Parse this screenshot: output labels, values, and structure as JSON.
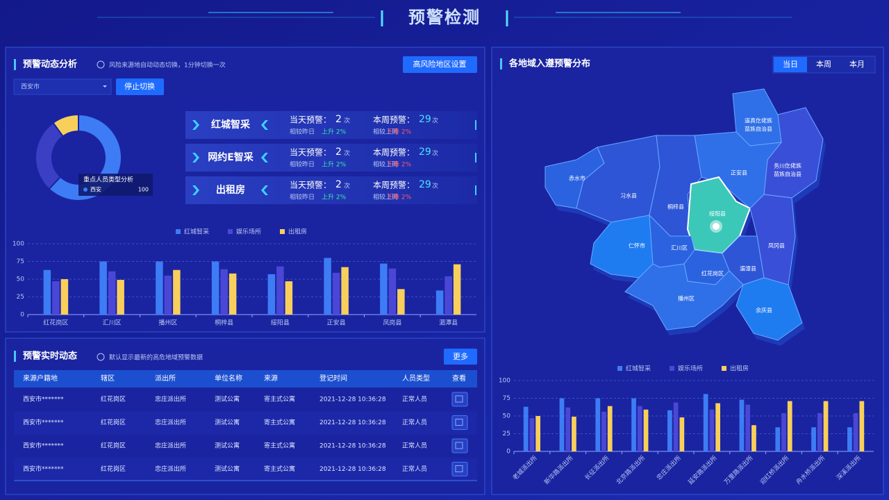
{
  "header": {
    "title": "预警检测"
  },
  "left_top": {
    "title": "预警动态分析",
    "info": "风险来源地自动动态切换，1分钟切换一次",
    "button": "高风险地区设置",
    "select": "西安市",
    "stop_button": "停止切换",
    "cards": [
      {
        "name": "红城智采",
        "today_label": "当天预警：",
        "today_value": 2,
        "today_unit": "次",
        "day_compare": "相较昨日",
        "day_trend": "上升 2%",
        "week_label": "本周预警：",
        "week_value": 29,
        "week_unit": "次",
        "week_compare": "相较上周",
        "week_trend": "下降 2%"
      },
      {
        "name": "网约E智采",
        "today_label": "当天预警：",
        "today_value": 2,
        "today_unit": "次",
        "day_compare": "相较昨日",
        "day_trend": "上升 2%",
        "week_label": "本周预警：",
        "week_value": 29,
        "week_unit": "次",
        "week_compare": "相较上周",
        "week_trend": "下降 2%"
      },
      {
        "name": "出租房",
        "today_label": "当天预警：",
        "today_value": 2,
        "today_unit": "次",
        "day_compare": "相较昨日",
        "day_trend": "上升 2%",
        "week_label": "本周预警：",
        "week_value": 29,
        "week_unit": "次",
        "week_compare": "相较上周",
        "week_trend": "下降 2%"
      }
    ]
  },
  "chart_data": [
    {
      "type": "pie",
      "categories": [
        null,
        null,
        null
      ],
      "values": [
        62,
        28,
        10
      ],
      "colors": [
        "#3d7cf5",
        "#3a3fc4",
        "#f9cf5b"
      ],
      "tooltip": {
        "title": "重点人员类型分析",
        "label": "西安",
        "value": 100
      }
    },
    {
      "type": "bar",
      "categories": [
        "红花岗区",
        "汇川区",
        "播州区",
        "桐梓县",
        "绥阳县",
        "正安县",
        "凤岗县",
        "湄潭县"
      ],
      "series": [
        {
          "name": "红城智采",
          "color": "#3d7cf5",
          "values": [
            63,
            75,
            75,
            75,
            57,
            80,
            72,
            34
          ]
        },
        {
          "name": "娱乐场所",
          "color": "#4b47d6",
          "values": [
            47,
            61,
            55,
            64,
            68,
            59,
            65,
            54
          ]
        },
        {
          "name": "出租房",
          "color": "#f9cf5b",
          "values": [
            50,
            49,
            63,
            58,
            47,
            67,
            36,
            71
          ]
        }
      ],
      "ylim": [
        0,
        100
      ],
      "yticks": [
        0,
        25,
        50,
        75,
        100
      ],
      "grid": true
    },
    {
      "type": "bar",
      "categories": [
        "老城派出所",
        "新华路派出所",
        "长征派出所",
        "北京路派出所",
        "忠庄派出所",
        "延安路派出所",
        "万里路派出所",
        "迎红桥派出所",
        "舟水桥派出所",
        "深溪派出所"
      ],
      "series": [
        {
          "name": "红城智采",
          "color": "#3d7cf5",
          "values": [
            63,
            75,
            75,
            75,
            58,
            81,
            73,
            34,
            34,
            34
          ]
        },
        {
          "name": "娱乐场所",
          "color": "#4b47d6",
          "values": [
            47,
            62,
            56,
            64,
            69,
            59,
            66,
            54,
            54,
            54
          ]
        },
        {
          "name": "出租房",
          "color": "#f9cf5b",
          "values": [
            50,
            49,
            64,
            59,
            48,
            68,
            37,
            71,
            71,
            71
          ]
        }
      ],
      "ylim": [
        0,
        100
      ],
      "yticks": [
        0,
        25,
        50,
        75,
        100
      ],
      "grid": true,
      "rotate_labels": true
    }
  ],
  "table": {
    "title": "预警实时动态",
    "info": "默认显示最新的高危地域预警数据",
    "button": "更多",
    "columns": [
      "来源户籍地",
      "辖区",
      "派出所",
      "单位名称",
      "来源",
      "登记时间",
      "人员类型",
      "查看"
    ],
    "rows": [
      [
        "西安市*******",
        "红花岗区",
        "忠庄派出所",
        "测试公寓",
        "寄主式公寓",
        "2021-12-28 10:36:28",
        "正常人员"
      ],
      [
        "西安市*******",
        "红花岗区",
        "忠庄派出所",
        "测试公寓",
        "寄主式公寓",
        "2021-12-28 10:36:28",
        "正常人员"
      ],
      [
        "西安市*******",
        "红花岗区",
        "忠庄派出所",
        "测试公寓",
        "寄主式公寓",
        "2021-12-28 10:36:28",
        "正常人员"
      ],
      [
        "西安市*******",
        "红花岗区",
        "忠庄派出所",
        "测试公寓",
        "寄主式公寓",
        "2021-12-28 10:36:28",
        "正常人员"
      ]
    ]
  },
  "map": {
    "title": "各地域入遵预警分布",
    "tabs": [
      "当日",
      "本周",
      "本月"
    ],
    "regions": [
      [
        "道真仡佬族",
        "苗族自治县"
      ],
      [
        "务川仡佬族",
        "苗族自治县"
      ],
      [
        "赤水市"
      ],
      [
        "习水县"
      ],
      [
        "正安县"
      ],
      [
        "桐梓县"
      ],
      [
        "绥阳县"
      ],
      [
        "仁怀市"
      ],
      [
        "汇川区"
      ],
      [
        "凤冈县"
      ],
      [
        "湄潭县"
      ],
      [
        "红花岗区"
      ],
      [
        "播州区"
      ],
      [
        "余庆县"
      ]
    ]
  }
}
